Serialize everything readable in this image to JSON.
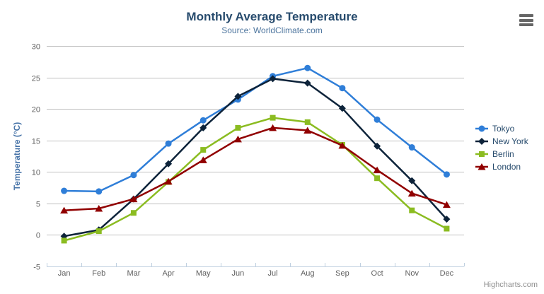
{
  "chart": {
    "title": "Monthly Average Temperature",
    "subtitle": "Source: WorldClimate.com",
    "yaxis_title": "Temperature (°C)"
  },
  "colors": {
    "title": "#274b6d",
    "subtitle": "#4d759e",
    "axis_title": "#4572a7",
    "axis_label": "#606060",
    "grid": "#c0c0c0",
    "axis_line": "#c0d0e0",
    "legend_text": "#274b6d",
    "credits": "#909090",
    "export_icon": "#666666"
  },
  "chart_data": {
    "type": "line",
    "title": "Monthly Average Temperature",
    "subtitle": "Source: WorldClimate.com",
    "categories": [
      "Jan",
      "Feb",
      "Mar",
      "Apr",
      "May",
      "Jun",
      "Jul",
      "Aug",
      "Sep",
      "Oct",
      "Nov",
      "Dec"
    ],
    "series": [
      {
        "name": "Tokyo",
        "color": "#2f7ed8",
        "marker": "circle",
        "values": [
          7.0,
          6.9,
          9.5,
          14.5,
          18.2,
          21.5,
          25.2,
          26.5,
          23.3,
          18.3,
          13.9,
          9.6
        ]
      },
      {
        "name": "New York",
        "color": "#0d233a",
        "marker": "diamond",
        "values": [
          -0.2,
          0.8,
          5.7,
          11.3,
          17.0,
          22.0,
          24.8,
          24.1,
          20.1,
          14.1,
          8.6,
          2.5
        ]
      },
      {
        "name": "Berlin",
        "color": "#8bbc21",
        "marker": "square",
        "values": [
          -0.9,
          0.6,
          3.5,
          8.4,
          13.5,
          17.0,
          18.6,
          17.9,
          14.3,
          9.0,
          3.9,
          1.0
        ]
      },
      {
        "name": "London",
        "color": "#910000",
        "marker": "triangle",
        "values": [
          3.9,
          4.2,
          5.7,
          8.5,
          11.9,
          15.2,
          17.0,
          16.6,
          14.2,
          10.3,
          6.6,
          4.8
        ]
      }
    ],
    "xlabel": "",
    "ylabel": "Temperature (°C)",
    "ylim": [
      -5,
      30
    ],
    "ytick_step": 5,
    "yticks": [
      -5,
      0,
      5,
      10,
      15,
      20,
      25,
      30
    ],
    "grid": true,
    "legend_position": "right-middle"
  },
  "icons": {
    "export_menu": "hamburger-menu-icon"
  },
  "credits": {
    "label": "Highcharts.com"
  }
}
